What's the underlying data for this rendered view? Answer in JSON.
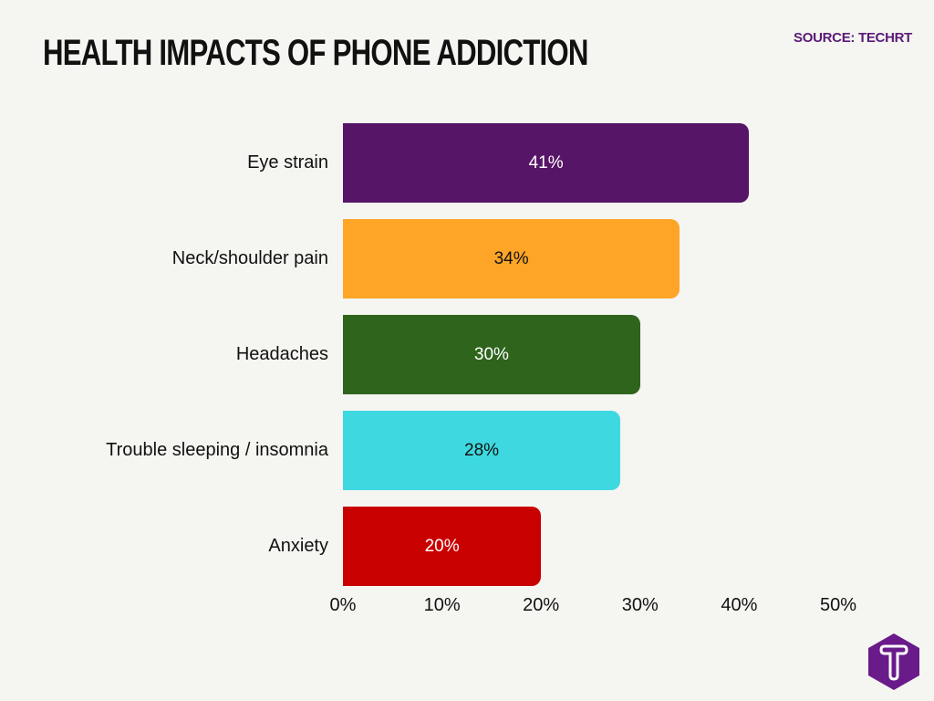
{
  "header": {
    "title": "HEALTH IMPACTS OF PHONE ADDICTION",
    "source": "SOURCE: TECHRT"
  },
  "chart_data": {
    "type": "bar",
    "orientation": "horizontal",
    "title": "HEALTH IMPACTS OF PHONE ADDICTION",
    "categories": [
      "Eye strain",
      "Neck/shoulder pain",
      "Headaches",
      "Trouble sleeping / insomnia",
      "Anxiety"
    ],
    "values": [
      41,
      34,
      30,
      28,
      20
    ],
    "value_labels": [
      "41%",
      "34%",
      "30%",
      "28%",
      "20%"
    ],
    "colors": [
      "#561566",
      "#fea527",
      "#2e641c",
      "#3ed9e0",
      "#c90000"
    ],
    "label_colors": [
      "#ffffff",
      "#111111",
      "#ffffff",
      "#111111",
      "#ffffff"
    ],
    "xlabel": "",
    "ylabel": "",
    "xlim": [
      0,
      50
    ],
    "x_ticks": [
      "0%",
      "10%",
      "20%",
      "30%",
      "40%",
      "50%"
    ],
    "grid": false,
    "legend": "none",
    "source": "SOURCE: TECHRT"
  },
  "logo": {
    "letter": "T"
  }
}
